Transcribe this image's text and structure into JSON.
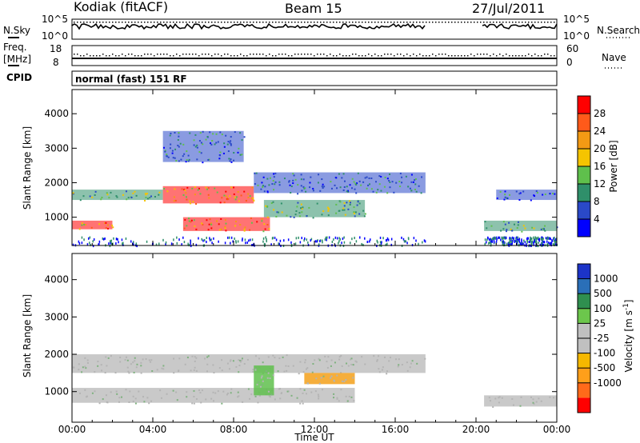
{
  "header": {
    "radar": "Kodiak (fitACF)",
    "beam": "Beam 15",
    "date": "27/Jul/2011"
  },
  "summary": {
    "nsky_label": "N.Sky",
    "nsky_ticks": [
      "10^5",
      "10^0"
    ],
    "nsearch_label": "N.Search",
    "nsearch_ticks": [
      "10^5",
      "10^0"
    ],
    "freq_label_1": "Freq.",
    "freq_label_2": "[MHz]",
    "freq_ticks": [
      "18",
      "8"
    ],
    "nave_label": "Nave",
    "nave_ticks": [
      "60",
      "0"
    ],
    "cpid_label": "CPID",
    "cpid_value": "normal (fast) 151 RF"
  },
  "colors": {
    "power_scale": [
      "#0000ff",
      "#2a49c8",
      "#2f8f6a",
      "#5fc04c",
      "#f5c400",
      "#f39a14",
      "#ff5a1a",
      "#ff0000"
    ],
    "velocity_scale": [
      "#ff0000",
      "#ff6a1a",
      "#ff9f1a",
      "#f5b800",
      "#c0c0c0",
      "#c0c0c0",
      "#6cc64c",
      "#2f8f4f",
      "#2a6fb8",
      "#1c34c8"
    ],
    "ground_scatter": "#a9a9a9"
  },
  "chart_data": [
    {
      "type": "heatmap",
      "name": "power",
      "xlabel": "Time UT",
      "ylabel": "Slant Range [km]",
      "x_ticks": [
        "00:00",
        "04:00",
        "08:00",
        "12:00",
        "16:00",
        "20:00",
        "00:00"
      ],
      "xlim_hours": [
        0,
        24
      ],
      "y_ticks": [
        1000,
        2000,
        3000,
        4000
      ],
      "ylim": [
        180,
        4700
      ],
      "colorbar_label": "Power [dB]",
      "colorbar_ticks": [
        4,
        8,
        12,
        16,
        20,
        24,
        28
      ],
      "colorbar_range": [
        0,
        32
      ],
      "data_gap_hours": [
        17.5,
        20.4
      ],
      "echo_bands": [
        {
          "t": [
            0.0,
            2.0
          ],
          "range": [
            650,
            900
          ],
          "level": "high"
        },
        {
          "t": [
            0.0,
            4.5
          ],
          "range": [
            1500,
            1800
          ],
          "level": "medium"
        },
        {
          "t": [
            4.5,
            9.0
          ],
          "range": [
            1400,
            1900
          ],
          "level": "high"
        },
        {
          "t": [
            5.5,
            9.8
          ],
          "range": [
            600,
            1000
          ],
          "level": "high"
        },
        {
          "t": [
            9.5,
            14.5
          ],
          "range": [
            1000,
            1500
          ],
          "level": "medium"
        },
        {
          "t": [
            9.0,
            17.5
          ],
          "range": [
            1700,
            2300
          ],
          "level": "low"
        },
        {
          "t": [
            4.5,
            8.5
          ],
          "range": [
            2600,
            3500
          ],
          "level": "low"
        },
        {
          "t": [
            20.4,
            24.0
          ],
          "range": [
            600,
            900
          ],
          "level": "medium"
        },
        {
          "t": [
            21.0,
            24.0
          ],
          "range": [
            1500,
            1800
          ],
          "level": "low"
        }
      ]
    },
    {
      "type": "heatmap",
      "name": "velocity",
      "xlabel": "Time UT",
      "ylabel": "Slant Range [km]",
      "x_ticks": [
        "00:00",
        "04:00",
        "08:00",
        "12:00",
        "16:00",
        "20:00",
        "00:00"
      ],
      "xlim_hours": [
        0,
        24
      ],
      "y_ticks": [
        1000,
        2000,
        3000,
        4000
      ],
      "ylim": [
        180,
        4700
      ],
      "colorbar_label": "Velocity [m s^-1]",
      "colorbar_ticks": [
        "1000",
        "500",
        "100",
        "25",
        "-25",
        "-100",
        "-500",
        "-1000"
      ],
      "data_gap_hours": [
        17.5,
        20.4
      ],
      "echo_bands": [
        {
          "t": [
            0.0,
            17.5
          ],
          "range": [
            1500,
            2000
          ],
          "value": "ground scatter"
        },
        {
          "t": [
            0.0,
            14.0
          ],
          "range": [
            700,
            1100
          ],
          "value": "ground scatter"
        },
        {
          "t": [
            9.0,
            10.0
          ],
          "range": [
            900,
            1700
          ],
          "value": "100 to 500"
        },
        {
          "t": [
            11.5,
            14.0
          ],
          "range": [
            1200,
            1500
          ],
          "value": "-100 to -500"
        },
        {
          "t": [
            20.4,
            24.0
          ],
          "range": [
            600,
            900
          ],
          "value": "ground scatter"
        }
      ]
    }
  ]
}
